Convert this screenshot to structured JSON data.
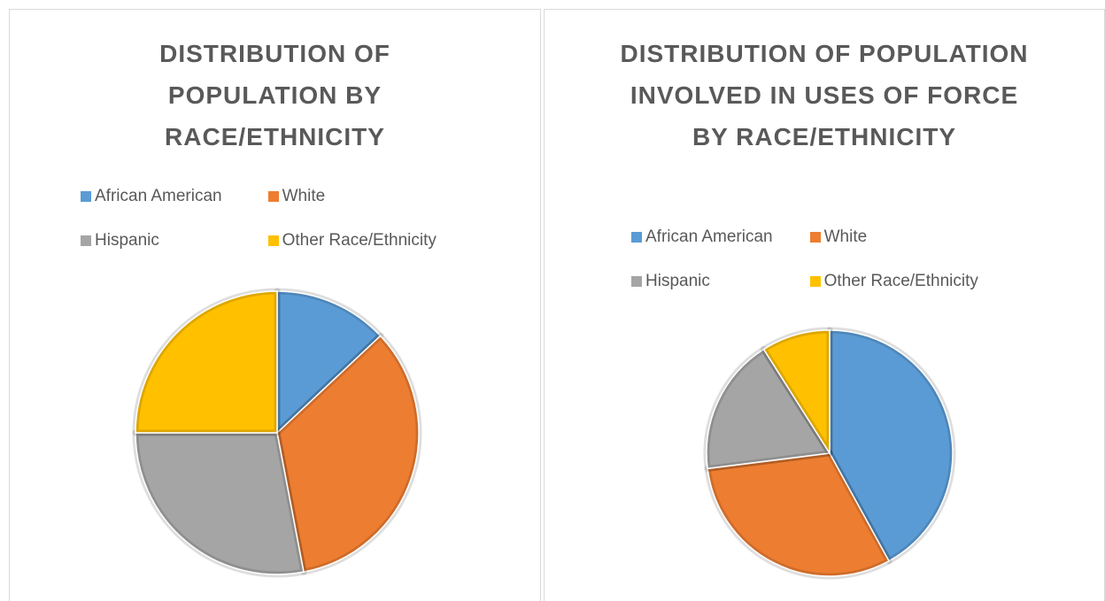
{
  "chart_data": [
    {
      "type": "pie",
      "title": "DISTRIBUTION OF POPULATION BY RACE/ETHNICITY",
      "categories": [
        "African American",
        "White",
        "Hispanic",
        "Other Race/Ethnicity"
      ],
      "values": [
        13,
        34,
        28,
        25
      ],
      "colors": [
        "#5b9bd5",
        "#ed7d31",
        "#a5a5a5",
        "#ffc000"
      ]
    },
    {
      "type": "pie",
      "title": "DISTRIBUTION OF POPULATION INVOLVED IN USES OF FORCE BY RACE/ETHNICITY",
      "categories": [
        "African American",
        "White",
        "Hispanic",
        "Other Race/Ethnicity"
      ],
      "values": [
        42,
        31,
        18,
        9
      ],
      "colors": [
        "#5b9bd5",
        "#ed7d31",
        "#a5a5a5",
        "#ffc000"
      ]
    }
  ]
}
